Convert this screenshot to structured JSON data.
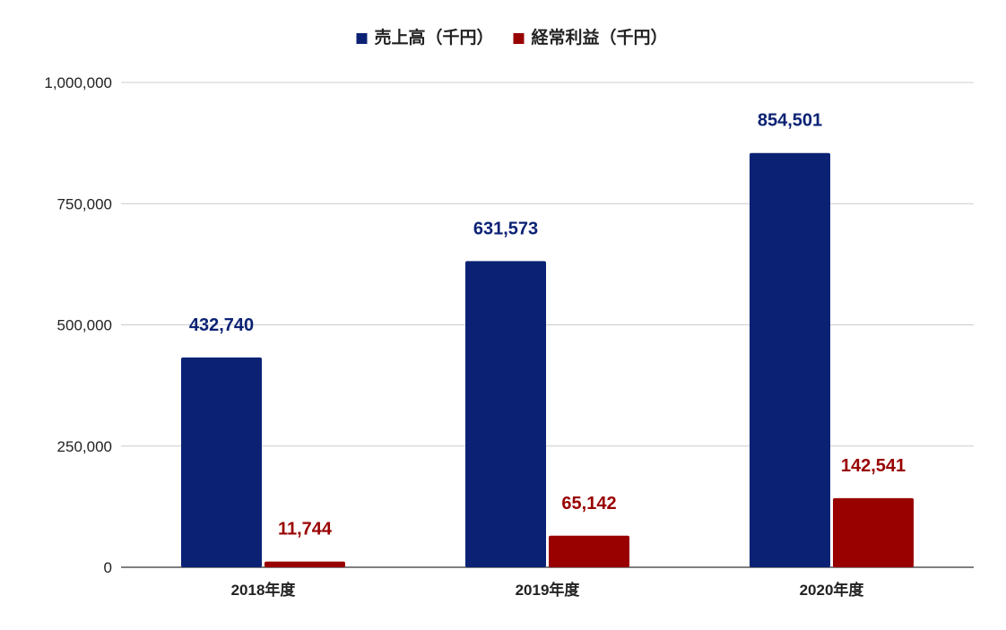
{
  "chart_data": {
    "type": "bar",
    "categories": [
      "2018年度",
      "2019年度",
      "2020年度"
    ],
    "series": [
      {
        "name": "売上高（千円）",
        "values": [
          432740,
          631573,
          854501
        ],
        "color": "#0b2274"
      },
      {
        "name": "経常利益（千円）",
        "values": [
          11744,
          65142,
          142541
        ],
        "color": "#990000"
      }
    ],
    "value_labels": [
      [
        "432,740",
        "631,573",
        "854,501"
      ],
      [
        "11,744",
        "65,142",
        "142,541"
      ]
    ],
    "y_ticks": [
      0,
      250000,
      500000,
      750000,
      1000000
    ],
    "y_tick_labels": [
      "0",
      "250,000",
      "500,000",
      "750,000",
      "1,000,000"
    ],
    "ylim": [
      0,
      1000000
    ],
    "grid": true,
    "legend_position": "top-center",
    "title": "",
    "xlabel": "",
    "ylabel": ""
  },
  "colors": {
    "grid": "#cccccc",
    "axis": "#333333",
    "text": "#222222"
  }
}
